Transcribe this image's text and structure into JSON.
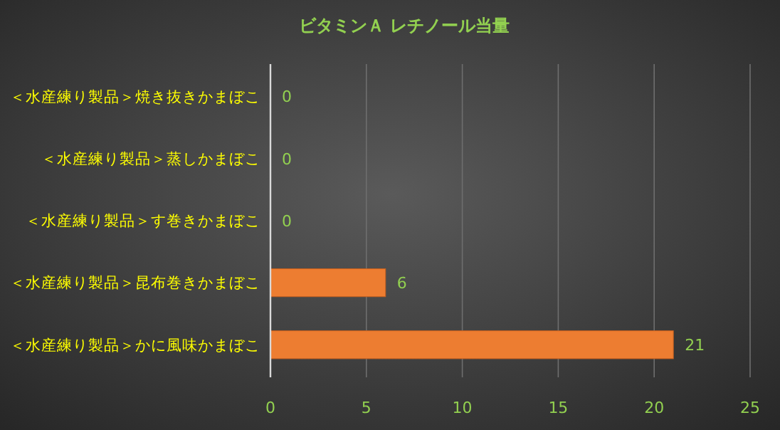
{
  "chart_data": {
    "type": "bar",
    "orientation": "horizontal",
    "title": "ビタミンＡ レチノール当量",
    "categories": [
      "＜水産練り製品＞焼き抜きかまぼこ",
      "＜水産練り製品＞蒸しかまぼこ",
      "＜水産練り製品＞す巻きかまぼこ",
      "＜水産練り製品＞昆布巻きかまぼこ",
      "＜水産練り製品＞かに風味かまぼこ"
    ],
    "values": [
      0,
      0,
      0,
      6,
      21
    ],
    "color": "#ed7d31",
    "xlim": [
      0,
      25
    ],
    "xticks": [
      0,
      5,
      10,
      15,
      20,
      25
    ],
    "grid": "x",
    "data_labels": true
  }
}
